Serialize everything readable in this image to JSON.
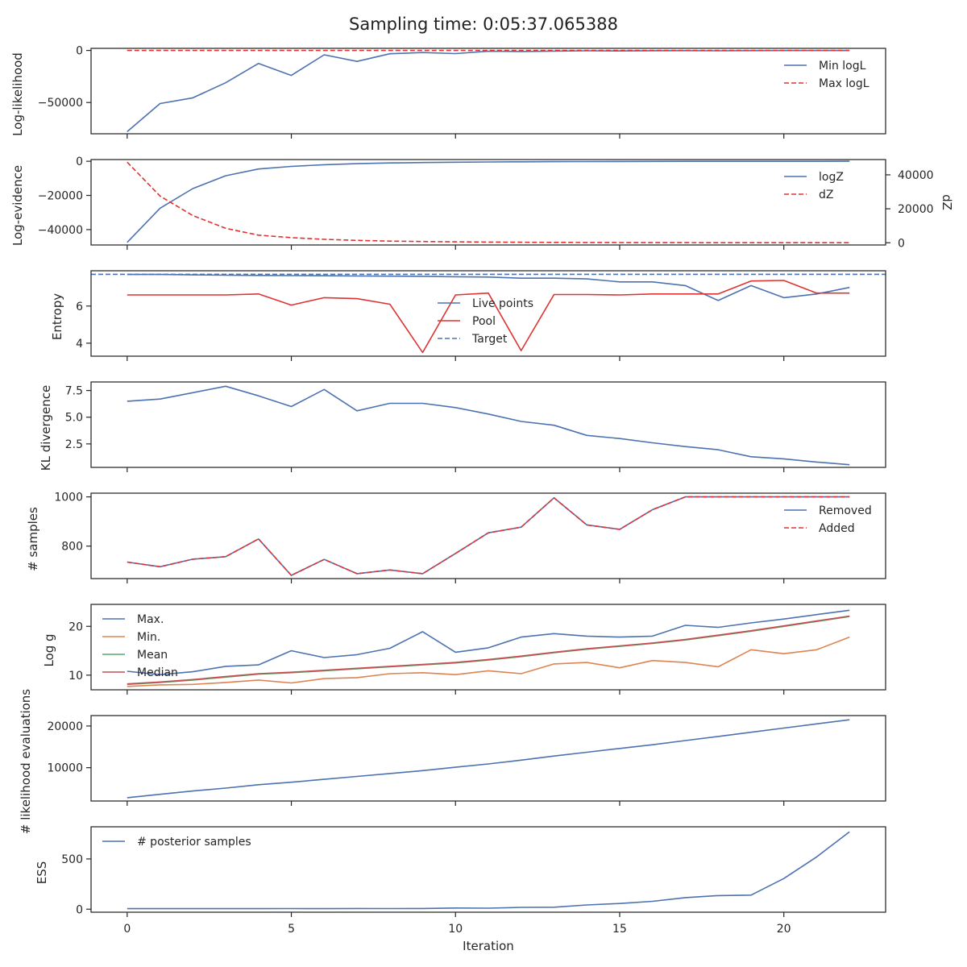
{
  "figure": {
    "title": "Sampling time: 0:05:37.065388",
    "xlabel": "Iteration",
    "x_ticks": [
      0,
      5,
      10,
      15,
      20
    ],
    "xlim": [
      -1.1,
      23.1
    ],
    "colors": {
      "blue": "#4c72b0",
      "red": "#dd3333",
      "orange": "#dd8452",
      "green": "#55a868",
      "median": "#c44e52"
    }
  },
  "chart_data": [
    {
      "type": "line",
      "ylabel": "Log-likelihood",
      "ylim": [
        -80000,
        2000
      ],
      "yticks": [
        0,
        -50000
      ],
      "ytick_labels": [
        "0",
        "−50000"
      ],
      "legend_position": "upper-right",
      "x": [
        0,
        1,
        2,
        3,
        4,
        5,
        6,
        7,
        8,
        9,
        10,
        11,
        12,
        13,
        14,
        15,
        16,
        17,
        18,
        19,
        20,
        21,
        22
      ],
      "series": [
        {
          "name": "Min logL",
          "color": "#4c72b0",
          "dash": false,
          "values": [
            -78000,
            -51000,
            -45500,
            -31000,
            -12500,
            -24000,
            -4200,
            -10500,
            -3200,
            -2000,
            -3000,
            -800,
            -1000,
            -600,
            -300,
            -500,
            -250,
            -200,
            -350,
            -150,
            -100,
            -80,
            -50
          ]
        },
        {
          "name": "Max logL",
          "color": "#dd3333",
          "dash": true,
          "values": [
            0,
            0,
            0,
            0,
            0,
            0,
            0,
            0,
            0,
            0,
            0,
            0,
            0,
            0,
            0,
            0,
            0,
            0,
            0,
            0,
            0,
            0,
            0
          ]
        }
      ]
    },
    {
      "type": "line",
      "ylabel": "Log-evidence",
      "ylim": [
        -49000,
        1000
      ],
      "yticks": [
        0,
        -20000,
        -40000
      ],
      "ytick_labels": [
        "0",
        "−20000",
        "−40000"
      ],
      "y2label": "dZ",
      "y2lim": [
        -1300,
        49000
      ],
      "y2ticks": [
        0,
        20000,
        40000
      ],
      "y2tick_labels": [
        "0",
        "20000",
        "40000"
      ],
      "legend_position": "upper-right",
      "x": [
        0,
        1,
        2,
        3,
        4,
        5,
        6,
        7,
        8,
        9,
        10,
        11,
        12,
        13,
        14,
        15,
        16,
        17,
        18,
        19,
        20,
        21,
        22
      ],
      "series": [
        {
          "name": "logZ",
          "color": "#4c72b0",
          "dash": false,
          "axis": "left",
          "values": [
            -47500,
            -27500,
            -16000,
            -8500,
            -4500,
            -3000,
            -2000,
            -1400,
            -1000,
            -750,
            -550,
            -400,
            -300,
            -220,
            -160,
            -110,
            -80,
            -60,
            -40,
            -30,
            -20,
            -15,
            -10
          ]
        },
        {
          "name": "dZ",
          "color": "#dd3333",
          "dash": true,
          "axis": "right",
          "values": [
            47500,
            27500,
            16000,
            8500,
            4500,
            3000,
            2000,
            1400,
            1000,
            750,
            550,
            400,
            300,
            220,
            160,
            110,
            80,
            60,
            40,
            30,
            20,
            15,
            10
          ]
        }
      ]
    },
    {
      "type": "line",
      "ylabel": "Entropy",
      "ylim": [
        3.3,
        7.9
      ],
      "yticks": [
        4,
        6
      ],
      "ytick_labels": [
        "4",
        "6"
      ],
      "legend_position": "lower-center",
      "x": [
        0,
        1,
        2,
        3,
        4,
        5,
        6,
        7,
        8,
        9,
        10,
        11,
        12,
        13,
        14,
        15,
        16,
        17,
        18,
        19,
        20,
        21,
        22
      ],
      "series": [
        {
          "name": "Live points",
          "color": "#4c72b0",
          "dash": false,
          "values": [
            7.7,
            7.7,
            7.68,
            7.66,
            7.65,
            7.64,
            7.63,
            7.62,
            7.61,
            7.6,
            7.58,
            7.56,
            7.5,
            7.5,
            7.46,
            7.3,
            7.3,
            7.1,
            6.3,
            7.1,
            6.45,
            6.65,
            7.0
          ]
        },
        {
          "name": "Pool",
          "color": "#dd3333",
          "dash": false,
          "values": [
            6.6,
            6.6,
            6.6,
            6.6,
            6.65,
            6.05,
            6.45,
            6.4,
            6.1,
            3.5,
            6.6,
            6.7,
            3.6,
            6.62,
            6.62,
            6.6,
            6.65,
            6.65,
            6.65,
            7.35,
            7.38,
            6.7,
            6.7
          ]
        },
        {
          "name": "Target",
          "color": "#4c72b0",
          "dash": true,
          "values": [
            7.71,
            7.71,
            7.71,
            7.71,
            7.71,
            7.71,
            7.71,
            7.71,
            7.71,
            7.71,
            7.71,
            7.71,
            7.71,
            7.71,
            7.71,
            7.71,
            7.71,
            7.71,
            7.71,
            7.71,
            7.71,
            7.71,
            7.71
          ],
          "span": true
        }
      ]
    },
    {
      "type": "line",
      "ylabel": "KL divergence",
      "ylim": [
        0.3,
        8.3
      ],
      "yticks": [
        2.5,
        5.0,
        7.5
      ],
      "ytick_labels": [
        "2.5",
        "5.0",
        "7.5"
      ],
      "x": [
        0,
        1,
        2,
        3,
        4,
        5,
        6,
        7,
        8,
        9,
        10,
        11,
        12,
        13,
        14,
        15,
        16,
        17,
        18,
        19,
        20,
        21,
        22
      ],
      "series": [
        {
          "name": "",
          "color": "#4c72b0",
          "dash": false,
          "values": [
            6.5,
            6.7,
            7.3,
            7.9,
            7.0,
            6.0,
            7.6,
            5.6,
            6.3,
            6.3,
            5.9,
            5.3,
            4.6,
            4.25,
            3.3,
            3.0,
            2.6,
            2.25,
            1.95,
            1.3,
            1.1,
            0.8,
            0.55
          ]
        }
      ]
    },
    {
      "type": "line",
      "ylabel": "# samples",
      "ylim": [
        668,
        1015
      ],
      "yticks": [
        800,
        1000
      ],
      "ytick_labels": [
        "800",
        "1000"
      ],
      "legend_position": "upper-right",
      "x": [
        0,
        1,
        2,
        3,
        4,
        5,
        6,
        7,
        8,
        9,
        10,
        11,
        12,
        13,
        14,
        15,
        16,
        17,
        18,
        19,
        20,
        21,
        22
      ],
      "series": [
        {
          "name": "Removed",
          "color": "#4c72b0",
          "dash": false,
          "values": [
            735,
            716,
            747,
            757,
            829,
            681,
            746,
            688,
            703,
            688,
            770,
            854,
            877,
            996,
            886,
            868,
            948,
            1000,
            1000,
            1000,
            1000,
            1000,
            1000
          ]
        },
        {
          "name": "Added",
          "color": "#dd3333",
          "dash": true,
          "values": [
            735,
            716,
            747,
            757,
            829,
            681,
            746,
            688,
            703,
            688,
            770,
            854,
            877,
            996,
            886,
            868,
            948,
            1000,
            1000,
            1000,
            1000,
            1000,
            1000
          ]
        }
      ]
    },
    {
      "type": "line",
      "ylabel": "Log g",
      "ylim": [
        7.0,
        24.5
      ],
      "yticks": [
        10,
        20
      ],
      "ytick_labels": [
        "10",
        "20"
      ],
      "legend_position": "upper-left",
      "x": [
        0,
        1,
        2,
        3,
        4,
        5,
        6,
        7,
        8,
        9,
        10,
        11,
        12,
        13,
        14,
        15,
        16,
        17,
        18,
        19,
        20,
        21,
        22
      ],
      "series": [
        {
          "name": "Max.",
          "color": "#4c72b0",
          "dash": false,
          "values": [
            10.8,
            10.1,
            10.7,
            11.8,
            12.1,
            15.0,
            13.6,
            14.2,
            15.5,
            18.9,
            14.7,
            15.6,
            17.8,
            18.5,
            18.0,
            17.8,
            18.0,
            20.2,
            19.8,
            20.7,
            21.5,
            22.4,
            23.3
          ]
        },
        {
          "name": "Min.",
          "color": "#dd8452",
          "dash": false,
          "values": [
            7.7,
            8.0,
            8.1,
            8.5,
            9.0,
            8.4,
            9.3,
            9.5,
            10.3,
            10.5,
            10.1,
            10.9,
            10.3,
            12.3,
            12.6,
            11.5,
            13.0,
            12.6,
            11.7,
            15.2,
            14.4,
            15.2,
            17.8
          ]
        },
        {
          "name": "Mean",
          "color": "#55a868",
          "dash": false,
          "values": [
            8.1,
            8.5,
            9.0,
            9.6,
            10.2,
            10.5,
            10.9,
            11.3,
            11.7,
            12.1,
            12.5,
            13.1,
            13.8,
            14.6,
            15.3,
            15.9,
            16.5,
            17.2,
            18.1,
            19.0,
            20.0,
            21.0,
            22.0
          ]
        },
        {
          "name": "Median",
          "color": "#c44e52",
          "dash": false,
          "values": [
            8.2,
            8.6,
            9.1,
            9.7,
            10.3,
            10.6,
            11.0,
            11.4,
            11.8,
            12.2,
            12.6,
            13.2,
            13.9,
            14.7,
            15.4,
            16.0,
            16.6,
            17.3,
            18.2,
            19.1,
            20.1,
            21.1,
            22.1
          ]
        }
      ]
    },
    {
      "type": "line",
      "ylabel": "# likelihood evaluations",
      "ylim": [
        2000,
        22500
      ],
      "yticks": [
        10000,
        20000
      ],
      "ytick_labels": [
        "10000",
        "20000"
      ],
      "x": [
        0,
        1,
        2,
        3,
        4,
        5,
        6,
        7,
        8,
        9,
        10,
        11,
        12,
        13,
        14,
        15,
        16,
        17,
        18,
        19,
        20,
        21,
        22
      ],
      "series": [
        {
          "name": "",
          "color": "#4c72b0",
          "dash": false,
          "values": [
            2800,
            3600,
            4400,
            5100,
            5900,
            6500,
            7200,
            7900,
            8600,
            9300,
            10100,
            10900,
            11800,
            12800,
            13700,
            14600,
            15500,
            16500,
            17500,
            18500,
            19500,
            20500,
            21500
          ]
        }
      ]
    },
    {
      "type": "line",
      "ylabel": "ESS",
      "ylim": [
        -30,
        820
      ],
      "yticks": [
        0,
        500
      ],
      "ytick_labels": [
        "0",
        "500"
      ],
      "legend_position": "upper-left",
      "x": [
        0,
        1,
        2,
        3,
        4,
        5,
        6,
        7,
        8,
        9,
        10,
        11,
        12,
        13,
        14,
        15,
        16,
        17,
        18,
        19,
        20,
        21,
        22
      ],
      "series": [
        {
          "name": "# posterior samples",
          "color": "#4c72b0",
          "dash": false,
          "values": [
            5,
            5,
            5,
            5,
            5,
            6,
            5,
            7,
            6,
            7,
            12,
            10,
            18,
            20,
            42,
            57,
            78,
            115,
            135,
            140,
            305,
            520,
            770
          ]
        }
      ]
    }
  ]
}
